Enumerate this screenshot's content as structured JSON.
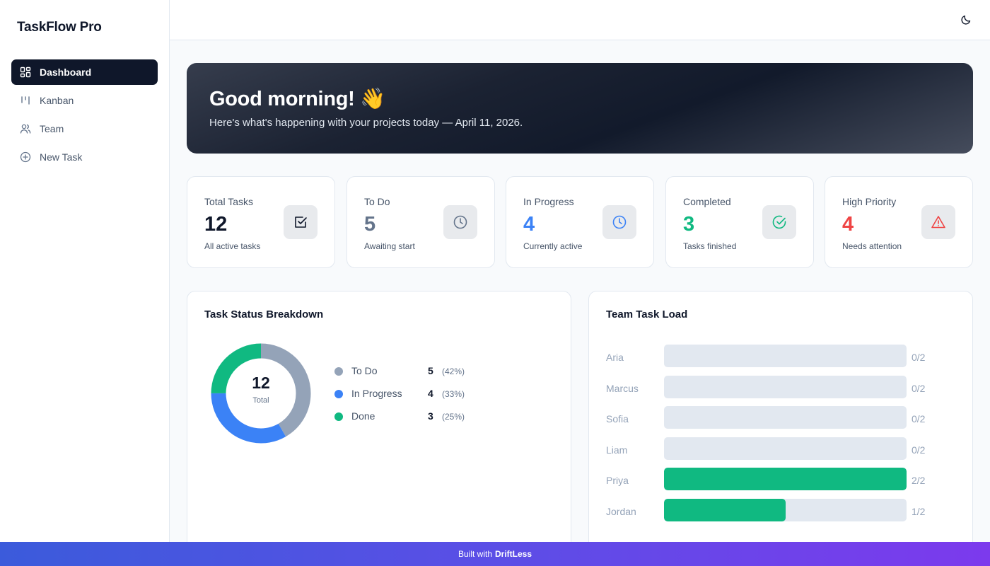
{
  "app": {
    "title": "TaskFlow Pro"
  },
  "sidebar": {
    "items": [
      {
        "label": "Dashboard",
        "icon": "dashboard-grid-icon",
        "active": true
      },
      {
        "label": "Kanban",
        "icon": "kanban-columns-icon",
        "active": false
      },
      {
        "label": "Team",
        "icon": "users-icon",
        "active": false
      },
      {
        "label": "New Task",
        "icon": "plus-circle-icon",
        "active": false
      }
    ]
  },
  "topbar": {
    "theme_icon": "moon-icon"
  },
  "hero": {
    "greeting": "Good morning! 👋",
    "subtitle": "Here's what's happening with your projects today — April 11, 2026."
  },
  "stats": [
    {
      "label": "Total Tasks",
      "value": "12",
      "desc": "All active tasks",
      "color": "#0f172a",
      "icon": "checkbox-icon"
    },
    {
      "label": "To Do",
      "value": "5",
      "desc": "Awaiting start",
      "color": "#64748b",
      "icon": "clock-icon"
    },
    {
      "label": "In Progress",
      "value": "4",
      "desc": "Currently active",
      "color": "#3b82f6",
      "icon": "clock-icon"
    },
    {
      "label": "Completed",
      "value": "3",
      "desc": "Tasks finished",
      "color": "#10b981",
      "icon": "check-circle-icon"
    },
    {
      "label": "High Priority",
      "value": "4",
      "desc": "Needs attention",
      "color": "#ef4444",
      "icon": "warning-triangle-icon"
    }
  ],
  "status_breakdown": {
    "title": "Task Status Breakdown",
    "total_value": "12",
    "total_label": "Total",
    "items": [
      {
        "name": "To Do",
        "count": "5",
        "pct": "(42%)",
        "value": 5,
        "color": "#94a3b8"
      },
      {
        "name": "In Progress",
        "count": "4",
        "pct": "(33%)",
        "value": 4,
        "color": "#3b82f6"
      },
      {
        "name": "Done",
        "count": "3",
        "pct": "(25%)",
        "value": 3,
        "color": "#10b981"
      }
    ]
  },
  "team_load": {
    "title": "Team Task Load",
    "members": [
      {
        "name": "Aria",
        "count": "0/2",
        "fraction": 0
      },
      {
        "name": "Marcus",
        "count": "0/2",
        "fraction": 0
      },
      {
        "name": "Sofia",
        "count": "0/2",
        "fraction": 0
      },
      {
        "name": "Liam",
        "count": "0/2",
        "fraction": 0
      },
      {
        "name": "Priya",
        "count": "2/2",
        "fraction": 1
      },
      {
        "name": "Jordan",
        "count": "1/2",
        "fraction": 0.5
      }
    ]
  },
  "footer": {
    "prefix": "Built with",
    "brand": "DriftLess"
  }
}
